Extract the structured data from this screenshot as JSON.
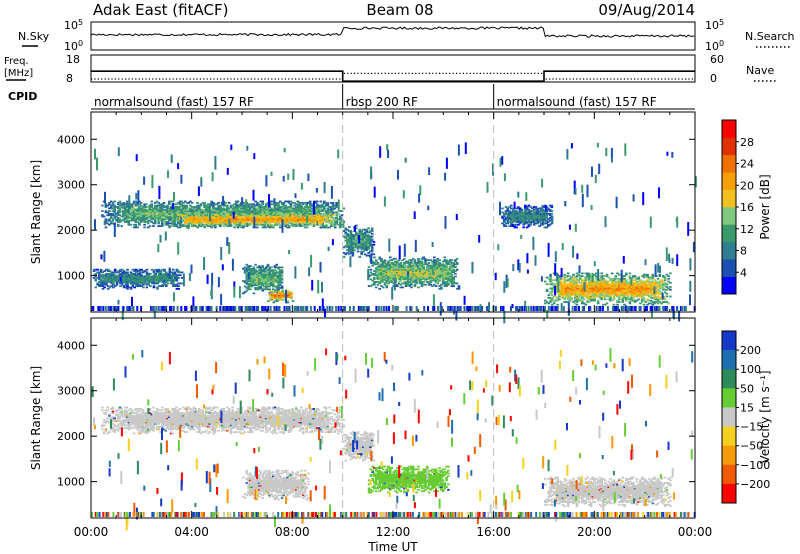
{
  "header": {
    "radar": "Adak East (fitACF)",
    "beam": "Beam 08",
    "date": "09/Aug/2014"
  },
  "chart_data": [
    {
      "type": "line",
      "left_label": "N.Sky",
      "right_label": "N.Search",
      "left_ticks": [
        "10^5",
        "10^0"
      ],
      "right_ticks": [
        "10^5",
        "10^0"
      ],
      "series": [
        {
          "name": "N.Sky",
          "style": "solid",
          "x": [
            0,
            10.0,
            10.05,
            18.0,
            18.05,
            24
          ],
          "y": [
            0.55,
            0.55,
            0.78,
            0.78,
            0.5,
            0.5
          ]
        },
        {
          "name": "N.Search",
          "style": "dotted",
          "x": [],
          "y": []
        }
      ]
    },
    {
      "type": "line",
      "left_label": "Freq. [MHz]",
      "right_label": "Nave",
      "left_ticks": [
        "18",
        "8"
      ],
      "right_ticks": [
        "60",
        "0"
      ],
      "series": [
        {
          "name": "Freq.",
          "style": "solid",
          "x": [
            0,
            10.0,
            10.0,
            18.0,
            18.0,
            24
          ],
          "y": [
            12.0,
            12.0,
            8.3,
            8.3,
            12.0,
            12.0
          ]
        },
        {
          "name": "Nave",
          "style": "dotted",
          "x": [
            0,
            10.0,
            10.0,
            18.0,
            18.0,
            24
          ],
          "y": [
            9.1,
            9.1,
            11.2,
            11.2,
            9.1,
            9.1
          ]
        }
      ]
    },
    {
      "type": "table",
      "label": "CPID",
      "segments": [
        {
          "start": 0,
          "end": 10.0,
          "name": "normalsound (fast) 157 RF"
        },
        {
          "start": 10.0,
          "end": 16.0,
          "name": "rbsp 200 RF"
        },
        {
          "start": 16.0,
          "end": 24,
          "name": "normalsound (fast) 157 RF"
        }
      ]
    },
    {
      "type": "heatmap",
      "parameter": "power",
      "ylabel": "Slant Range [km]",
      "ylim": [
        200,
        4600
      ],
      "yticks": [
        1000,
        2000,
        3000,
        4000
      ],
      "colorbar": {
        "label": "Power [dB]",
        "ticks": [
          4,
          8,
          12,
          16,
          20,
          24,
          28
        ],
        "colors": [
          "#0000ff",
          "#1b4fb0",
          "#2f7d8e",
          "#3b9a6c",
          "#7fc97f",
          "#f0c020",
          "#f5a000",
          "#f07000",
          "#e03000",
          "#ff0000"
        ]
      },
      "regions": [
        {
          "t0": 0.4,
          "t1": 10.0,
          "r0": 2050,
          "r1": 2650,
          "core": 12
        },
        {
          "t0": 3.0,
          "t1": 10.0,
          "r0": 2050,
          "r1": 2400,
          "core": 20
        },
        {
          "t0": 0.0,
          "t1": 3.6,
          "r0": 700,
          "r1": 1150,
          "core": 8
        },
        {
          "t0": 6.0,
          "t1": 7.6,
          "r0": 600,
          "r1": 1250,
          "core": 12
        },
        {
          "t0": 7.0,
          "t1": 8.0,
          "r0": 400,
          "r1": 700,
          "core": 22
        },
        {
          "t0": 10.0,
          "t1": 11.2,
          "r0": 1400,
          "r1": 2100,
          "core": 10
        },
        {
          "t0": 11.0,
          "t1": 14.6,
          "r0": 700,
          "r1": 1400,
          "core": 14
        },
        {
          "t0": 18.0,
          "t1": 23.0,
          "r0": 350,
          "r1": 1050,
          "core": 20
        },
        {
          "t0": 16.3,
          "t1": 18.3,
          "r0": 2050,
          "r1": 2550,
          "core": 8
        }
      ]
    },
    {
      "type": "heatmap",
      "parameter": "velocity",
      "xlabel": "Time UT",
      "ylabel": "Slant Range [km]",
      "xticks": [
        "00:00",
        "04:00",
        "08:00",
        "12:00",
        "16:00",
        "20:00",
        "00:00"
      ],
      "xlim": [
        0,
        24
      ],
      "ylim": [
        200,
        4600
      ],
      "yticks": [
        1000,
        2000,
        3000,
        4000
      ],
      "colorbar": {
        "label": "Velocity [m s⁻¹]",
        "ticks": [
          "200",
          "100",
          "50",
          "15",
          "−15",
          "−50",
          "−100",
          "−200"
        ],
        "colors": [
          "#1438c8",
          "#1f6fb0",
          "#2e8a5a",
          "#66cc33",
          "#c8c8c8",
          "#f5d020",
          "#f59a00",
          "#f05a00",
          "#ff0000"
        ]
      },
      "regions": [
        {
          "t0": 0.4,
          "t1": 10.0,
          "r0": 2050,
          "r1": 2650,
          "core": 0
        },
        {
          "t0": 10.0,
          "t1": 11.2,
          "r0": 1450,
          "r1": 2100,
          "core": 0
        },
        {
          "t0": 6.0,
          "t1": 8.6,
          "r0": 600,
          "r1": 1250,
          "core": 0
        },
        {
          "t0": 11.0,
          "t1": 14.2,
          "r0": 750,
          "r1": 1350,
          "core": 40
        },
        {
          "t0": 18.0,
          "t1": 23.0,
          "r0": 450,
          "r1": 1100,
          "core": 0
        }
      ]
    }
  ]
}
